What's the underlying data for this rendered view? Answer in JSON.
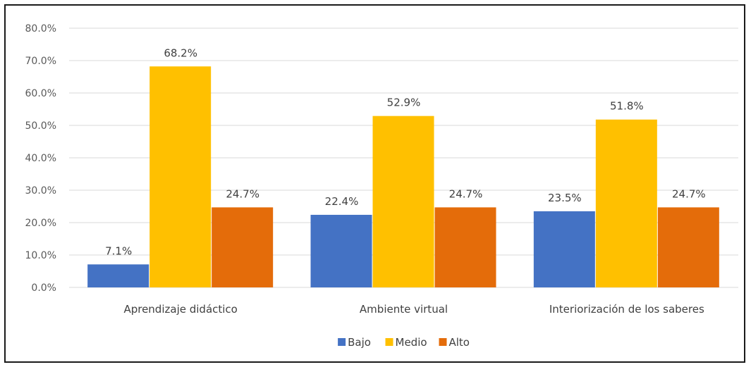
{
  "chart_data": {
    "type": "bar",
    "title": "",
    "xlabel": "",
    "ylabel": "",
    "categories": [
      "Aprendizaje didáctico",
      "Ambiente virtual",
      "Interiorización de los saberes"
    ],
    "series": [
      {
        "name": "Bajo",
        "color": "#4472c4",
        "values": [
          7.1,
          22.4,
          23.5
        ],
        "labels": [
          "7.1%",
          "22.4%",
          "23.5%"
        ]
      },
      {
        "name": "Medio",
        "color": "#ffc000",
        "values": [
          68.2,
          52.9,
          51.8
        ],
        "labels": [
          "68.2%",
          "52.9%",
          "51.8%"
        ]
      },
      {
        "name": "Alto",
        "color": "#e46c0a",
        "values": [
          24.7,
          24.7,
          24.7
        ],
        "labels": [
          "24.7%",
          "24.7%",
          "24.7%"
        ]
      }
    ],
    "ylim": [
      0,
      80
    ],
    "yticks": [
      0,
      10,
      20,
      30,
      40,
      50,
      60,
      70,
      80
    ],
    "ytick_labels": [
      "0.0%",
      "10.0%",
      "20.0%",
      "30.0%",
      "40.0%",
      "50.0%",
      "60.0%",
      "70.0%",
      "80.0%"
    ],
    "grid": true,
    "legend_position": "bottom"
  }
}
